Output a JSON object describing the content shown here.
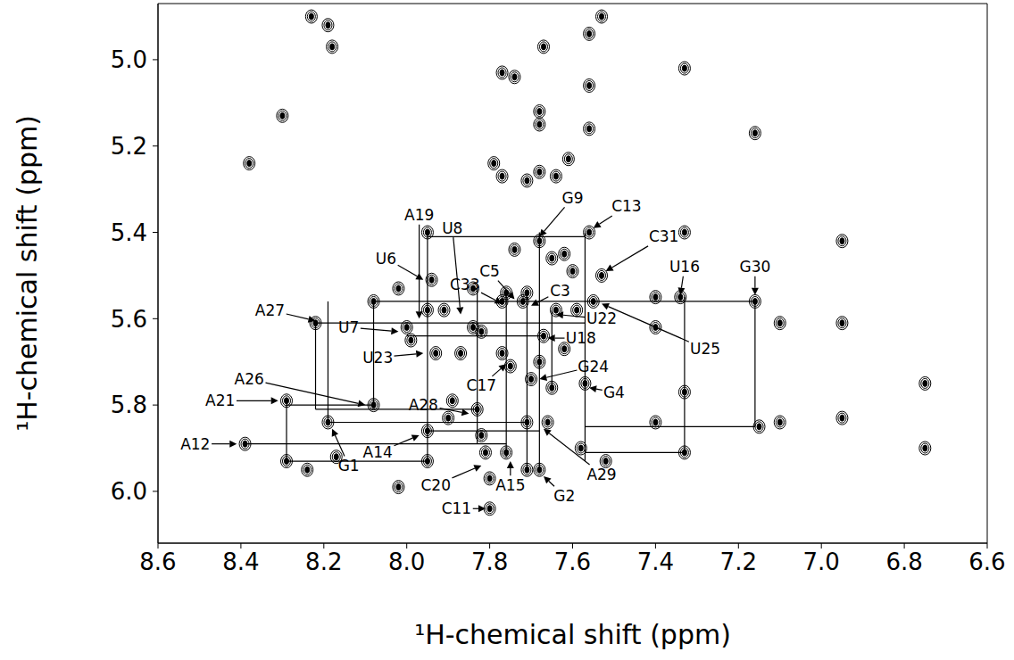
{
  "chart_data": {
    "type": "scatter",
    "x_label": "¹H-chemical shift (ppm)",
    "y_label": "¹H-chemical shift (ppm)",
    "xlim": [
      8.6,
      6.6
    ],
    "ylim": [
      6.12,
      4.87
    ],
    "xticks": [
      8.6,
      8.4,
      8.2,
      {
        "value": 8,
        "label": "8.0"
      },
      7.8,
      7.6,
      7.4,
      7.2,
      {
        "value": 7,
        "label": "7.0"
      },
      6.8,
      6.6
    ],
    "yticks": [
      {
        "value": 5,
        "label": "5.0"
      },
      5.2,
      5.4,
      5.6,
      5.8,
      {
        "value": 6,
        "label": "6.0"
      }
    ],
    "grid": false,
    "marker": "contour",
    "color": "#000000",
    "x": [
      8.23,
      8.19,
      8.18,
      7.77,
      7.74,
      7.67,
      7.56,
      7.53,
      7.33,
      7.16,
      7.56,
      7.68,
      7.68,
      7.56,
      7.79,
      7.77,
      7.71,
      7.68,
      7.64,
      7.61,
      8.3,
      8.38,
      6.95,
      6.95,
      7.1,
      6.75,
      6.75,
      6.95,
      7.33,
      7.4,
      7.1,
      7.15,
      7.4,
      7.33,
      7.33,
      7.4,
      7.34,
      7.16,
      8.39,
      8.29,
      8.29,
      8.24,
      8.22,
      8.19,
      8.17,
      8.08,
      8.08,
      8.02,
      8.02,
      8.0,
      7.99,
      7.95,
      7.95,
      7.94,
      7.93,
      7.95,
      7.95,
      7.91,
      7.87,
      7.84,
      7.84,
      7.82,
      7.83,
      7.82,
      7.81,
      7.8,
      7.77,
      7.76,
      7.77,
      7.75,
      7.76,
      7.74,
      7.72,
      7.71,
      7.71,
      7.71,
      7.7,
      7.68,
      7.68,
      7.67,
      7.66,
      7.65,
      7.64,
      7.65,
      7.62,
      7.6,
      7.59,
      7.57,
      7.58,
      7.56,
      7.53,
      7.55,
      7.52,
      7.62,
      7.68,
      7.8,
      7.89,
      7.9
    ],
    "y": [
      4.9,
      4.92,
      4.97,
      5.03,
      5.04,
      4.97,
      4.94,
      4.9,
      5.02,
      5.17,
      5.06,
      5.12,
      5.15,
      5.16,
      5.24,
      5.27,
      5.28,
      5.26,
      5.27,
      5.23,
      5.13,
      5.24,
      5.42,
      5.61,
      5.61,
      5.75,
      5.9,
      5.83,
      5.4,
      5.62,
      5.84,
      5.85,
      5.84,
      5.91,
      5.77,
      5.55,
      5.55,
      5.56,
      5.89,
      5.79,
      5.93,
      5.95,
      5.61,
      5.84,
      5.92,
      5.56,
      5.8,
      5.53,
      5.99,
      5.62,
      5.65,
      5.4,
      5.58,
      5.51,
      5.68,
      5.86,
      5.93,
      5.58,
      5.68,
      5.53,
      5.62,
      5.63,
      5.81,
      5.87,
      5.91,
      6.04,
      5.56,
      5.54,
      5.68,
      5.71,
      5.91,
      5.44,
      5.56,
      5.54,
      5.84,
      5.95,
      5.74,
      5.42,
      5.95,
      5.64,
      5.84,
      5.46,
      5.58,
      5.76,
      5.45,
      5.49,
      5.58,
      5.75,
      5.9,
      5.4,
      5.5,
      5.56,
      5.93,
      5.67,
      5.7,
      5.97,
      5.79,
      5.83
    ],
    "walk_lines": [
      {
        "x": [
          7.95,
          7.57
        ],
        "y": [
          5.41,
          5.41
        ]
      },
      {
        "x": [
          8.08,
          7.16
        ],
        "y": [
          5.56,
          5.56
        ]
      },
      {
        "x": [
          8.22,
          7.57
        ],
        "y": [
          5.61,
          5.61
        ]
      },
      {
        "x": [
          8.0,
          7.67
        ],
        "y": [
          5.64,
          5.64
        ]
      },
      {
        "x": [
          8.29,
          8.08
        ],
        "y": [
          5.8,
          5.8
        ]
      },
      {
        "x": [
          8.22,
          7.83
        ],
        "y": [
          5.81,
          5.81
        ]
      },
      {
        "x": [
          8.19,
          7.71
        ],
        "y": [
          5.84,
          5.84
        ]
      },
      {
        "x": [
          7.57,
          7.16
        ],
        "y": [
          5.85,
          5.85
        ]
      },
      {
        "x": [
          7.95,
          7.68
        ],
        "y": [
          5.86,
          5.86
        ]
      },
      {
        "x": [
          8.39,
          7.76
        ],
        "y": [
          5.89,
          5.89
        ]
      },
      {
        "x": [
          7.57,
          7.33
        ],
        "y": [
          5.91,
          5.91
        ]
      },
      {
        "x": [
          8.29,
          7.95
        ],
        "y": [
          5.93,
          5.93
        ]
      },
      {
        "x": [
          8.29,
          8.29
        ],
        "y": [
          5.79,
          5.93
        ]
      },
      {
        "x": [
          8.22,
          8.22
        ],
        "y": [
          5.61,
          5.81
        ]
      },
      {
        "x": [
          8.19,
          8.19
        ],
        "y": [
          5.56,
          5.84
        ]
      },
      {
        "x": [
          8.08,
          8.08
        ],
        "y": [
          5.56,
          5.8
        ]
      },
      {
        "x": [
          7.95,
          7.95
        ],
        "y": [
          5.4,
          5.93
        ]
      },
      {
        "x": [
          7.83,
          7.83
        ],
        "y": [
          5.53,
          5.89
        ]
      },
      {
        "x": [
          7.76,
          7.76
        ],
        "y": [
          5.54,
          5.92
        ]
      },
      {
        "x": [
          7.71,
          7.71
        ],
        "y": [
          5.54,
          5.95
        ]
      },
      {
        "x": [
          7.68,
          7.68
        ],
        "y": [
          5.4,
          5.95
        ]
      },
      {
        "x": [
          7.57,
          7.57
        ],
        "y": [
          5.4,
          5.93
        ]
      },
      {
        "x": [
          7.33,
          7.33
        ],
        "y": [
          5.55,
          5.91
        ]
      },
      {
        "x": [
          7.16,
          7.16
        ],
        "y": [
          5.56,
          5.85
        ]
      },
      {
        "x": [
          7.65,
          7.65
        ],
        "y": [
          5.58,
          5.76
        ]
      }
    ],
    "annotations": [
      {
        "text": "G1",
        "x": 8.14,
        "y": 5.94,
        "target": [
          8.18,
          5.855
        ]
      },
      {
        "text": "G2",
        "x": 7.62,
        "y": 6.01,
        "target": [
          7.67,
          5.965
        ]
      },
      {
        "text": "C3",
        "x": 7.63,
        "y": 5.535,
        "target": [
          7.7,
          5.57
        ]
      },
      {
        "text": "G4",
        "x": 7.5,
        "y": 5.77,
        "target": [
          7.56,
          5.76
        ]
      },
      {
        "text": "C5",
        "x": 7.8,
        "y": 5.49,
        "target": [
          7.74,
          5.555
        ]
      },
      {
        "text": "U6",
        "x": 8.05,
        "y": 5.46,
        "target": [
          7.96,
          5.51
        ]
      },
      {
        "text": "U7",
        "x": 8.14,
        "y": 5.62,
        "target": [
          8.02,
          5.63
        ]
      },
      {
        "text": "U8",
        "x": 7.89,
        "y": 5.39,
        "target": [
          7.87,
          5.59
        ]
      },
      {
        "text": "G9",
        "x": 7.6,
        "y": 5.32,
        "target": [
          7.68,
          5.41
        ]
      },
      {
        "text": "C11",
        "x": 7.88,
        "y": 6.04,
        "target": [
          7.81,
          6.04
        ]
      },
      {
        "text": "A12",
        "x": 8.51,
        "y": 5.89,
        "target": [
          8.41,
          5.89
        ]
      },
      {
        "text": "C13",
        "x": 7.47,
        "y": 5.34,
        "target": [
          7.55,
          5.39
        ]
      },
      {
        "text": "A14",
        "x": 8.07,
        "y": 5.91,
        "target": [
          7.97,
          5.87
        ]
      },
      {
        "text": "A15",
        "x": 7.75,
        "y": 5.985,
        "target": [
          7.75,
          5.93
        ]
      },
      {
        "text": "U16",
        "x": 7.33,
        "y": 5.48,
        "target": [
          7.34,
          5.545
        ]
      },
      {
        "text": "C17",
        "x": 7.82,
        "y": 5.755,
        "target": [
          7.76,
          5.705
        ]
      },
      {
        "text": "U18",
        "x": 7.58,
        "y": 5.645,
        "target": [
          7.66,
          5.645
        ]
      },
      {
        "text": "A19",
        "x": 7.97,
        "y": 5.36,
        "target": [
          7.97,
          5.6
        ]
      },
      {
        "text": "C20",
        "x": 7.93,
        "y": 5.985,
        "target": [
          7.82,
          5.94
        ]
      },
      {
        "text": "A21",
        "x": 8.45,
        "y": 5.79,
        "target": [
          8.31,
          5.79
        ]
      },
      {
        "text": "U22",
        "x": 7.53,
        "y": 5.6,
        "target": [
          7.64,
          5.59
        ]
      },
      {
        "text": "U23",
        "x": 8.07,
        "y": 5.69,
        "target": [
          7.96,
          5.68
        ]
      },
      {
        "text": "G24",
        "x": 7.55,
        "y": 5.71,
        "target": [
          7.68,
          5.74
        ]
      },
      {
        "text": "U25",
        "x": 7.28,
        "y": 5.67,
        "target": [
          7.53,
          5.565
        ]
      },
      {
        "text": "A26",
        "x": 8.38,
        "y": 5.74,
        "target": [
          8.1,
          5.8
        ]
      },
      {
        "text": "A27",
        "x": 8.33,
        "y": 5.58,
        "target": [
          8.22,
          5.605
        ]
      },
      {
        "text": "A28",
        "x": 7.96,
        "y": 5.8,
        "target": [
          7.85,
          5.82
        ]
      },
      {
        "text": "A29",
        "x": 7.53,
        "y": 5.96,
        "target": [
          7.67,
          5.855
        ]
      },
      {
        "text": "G30",
        "x": 7.16,
        "y": 5.48,
        "target": [
          7.16,
          5.545
        ]
      },
      {
        "text": "C31",
        "x": 7.38,
        "y": 5.41,
        "target": [
          7.52,
          5.49
        ]
      },
      {
        "text": "C33",
        "x": 7.86,
        "y": 5.52,
        "target": [
          7.77,
          5.565
        ]
      }
    ]
  }
}
